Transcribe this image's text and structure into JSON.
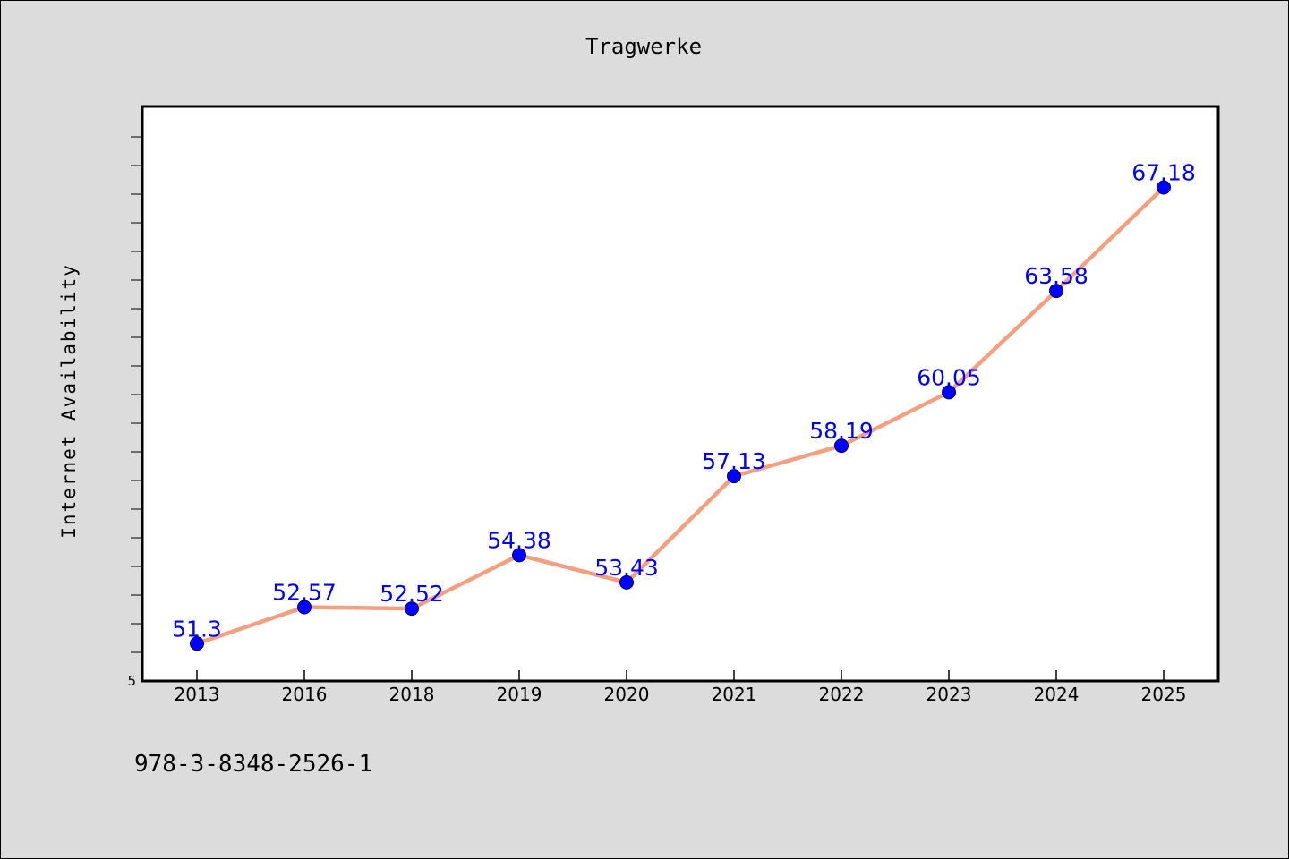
{
  "chart_data": {
    "type": "line",
    "title": "Tragwerke",
    "xlabel": "",
    "ylabel": "Internet Availability",
    "categories": [
      "2013",
      "2016",
      "2018",
      "2019",
      "2020",
      "2021",
      "2022",
      "2023",
      "2024",
      "2025"
    ],
    "series": [
      {
        "values": [
          51.3,
          52.57,
          52.52,
          54.38,
          53.43,
          57.13,
          58.19,
          60.05,
          63.58,
          67.18
        ],
        "labels": [
          "51.3",
          "52.57",
          "52.52",
          "54.38",
          "53.43",
          "57.13",
          "58.19",
          "60.05",
          "63.58",
          "67.18"
        ],
        "line_color": "#f4a080",
        "marker_color": "#0000ff"
      }
    ],
    "ytick_labels": [
      "5"
    ],
    "ylim": [
      50.0,
      70.0
    ],
    "grid": false,
    "legend": "none"
  },
  "footer_text": "978-3-8348-2526-1"
}
